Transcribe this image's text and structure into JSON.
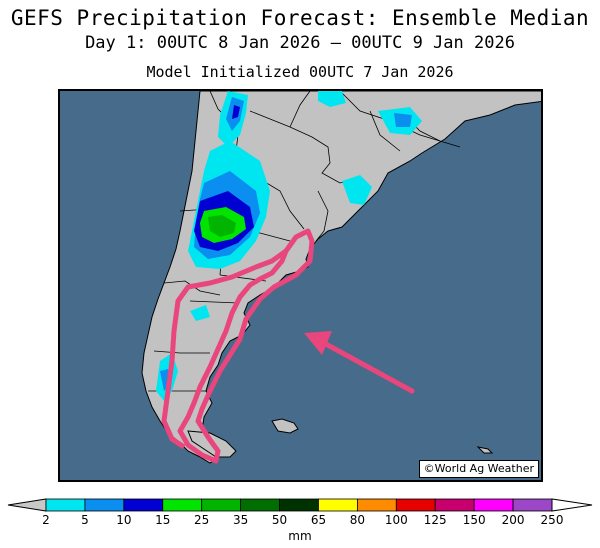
{
  "title": "GEFS Precipitation Forecast: Ensemble Median",
  "subtitle": "Day 1: 00UTC 8 Jan 2026 — 00UTC 9 Jan 2026",
  "init_line": "Model Initialized 00UTC 7 Jan 2026",
  "credit": "©World Ag Weather",
  "colors": {
    "ocean": "#476b8a",
    "land": "#c2c2c2",
    "highlight": "#e8467c",
    "arrow": "#e8467c"
  },
  "colorbar": {
    "unit": "mm",
    "ticks": [
      "2",
      "5",
      "10",
      "15",
      "25",
      "35",
      "50",
      "65",
      "80",
      "100",
      "125",
      "150",
      "200",
      "250"
    ],
    "colors": [
      "#00e6f0",
      "#0a8ff0",
      "#0000d2",
      "#00e400",
      "#00b400",
      "#006e00",
      "#003200",
      "#ffff00",
      "#ff8c00",
      "#e60000",
      "#c8006e",
      "#ff00ff",
      "#9b47c8"
    ],
    "under_color": "#c8c8c8",
    "over_color": "#ffffff"
  },
  "annotations": {
    "outline": "highlighted region over Patagonia",
    "arrow": "arrow pointing to highlighted region"
  }
}
